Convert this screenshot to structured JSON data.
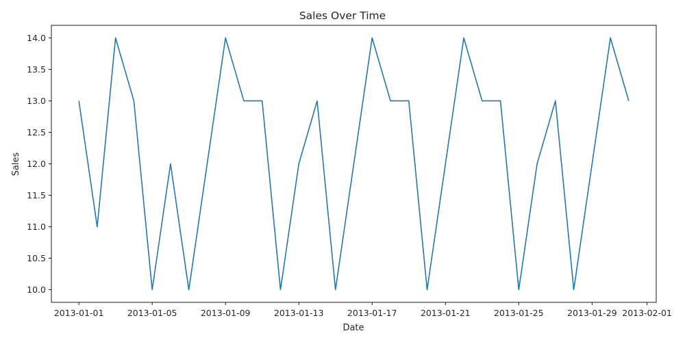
{
  "chart_data": {
    "type": "line",
    "title": "Sales Over Time",
    "xlabel": "Date",
    "ylabel": "Sales",
    "x": [
      "2013-01-01",
      "2013-01-02",
      "2013-01-03",
      "2013-01-04",
      "2013-01-05",
      "2013-01-06",
      "2013-01-07",
      "2013-01-08",
      "2013-01-09",
      "2013-01-10",
      "2013-01-11",
      "2013-01-12",
      "2013-01-13",
      "2013-01-14",
      "2013-01-15",
      "2013-01-16",
      "2013-01-17",
      "2013-01-18",
      "2013-01-19",
      "2013-01-20",
      "2013-01-21",
      "2013-01-22",
      "2013-01-23",
      "2013-01-24",
      "2013-01-25",
      "2013-01-26",
      "2013-01-27",
      "2013-01-28",
      "2013-01-29",
      "2013-01-30",
      "2013-01-31"
    ],
    "series": [
      {
        "values": [
          13,
          11,
          14,
          13,
          10,
          12,
          10,
          12,
          14,
          13,
          13,
          10,
          12,
          13,
          10,
          12,
          14,
          13,
          13,
          10,
          12,
          14,
          13,
          13,
          10,
          12,
          13,
          10,
          12,
          14,
          13
        ],
        "color": "#1f77b4"
      }
    ],
    "xlim": [
      "2013-01-01",
      "2013-01-31"
    ],
    "ylim": [
      10,
      14
    ],
    "x_ticks": [
      "2013-01-01",
      "2013-01-05",
      "2013-01-09",
      "2013-01-13",
      "2013-01-17",
      "2013-01-21",
      "2013-01-25",
      "2013-01-29",
      "2013-02-01"
    ],
    "y_ticks": [
      "10.0",
      "10.5",
      "11.0",
      "11.5",
      "12.0",
      "12.5",
      "13.0",
      "13.5",
      "14.0"
    ],
    "grid": false,
    "legend": "none"
  }
}
